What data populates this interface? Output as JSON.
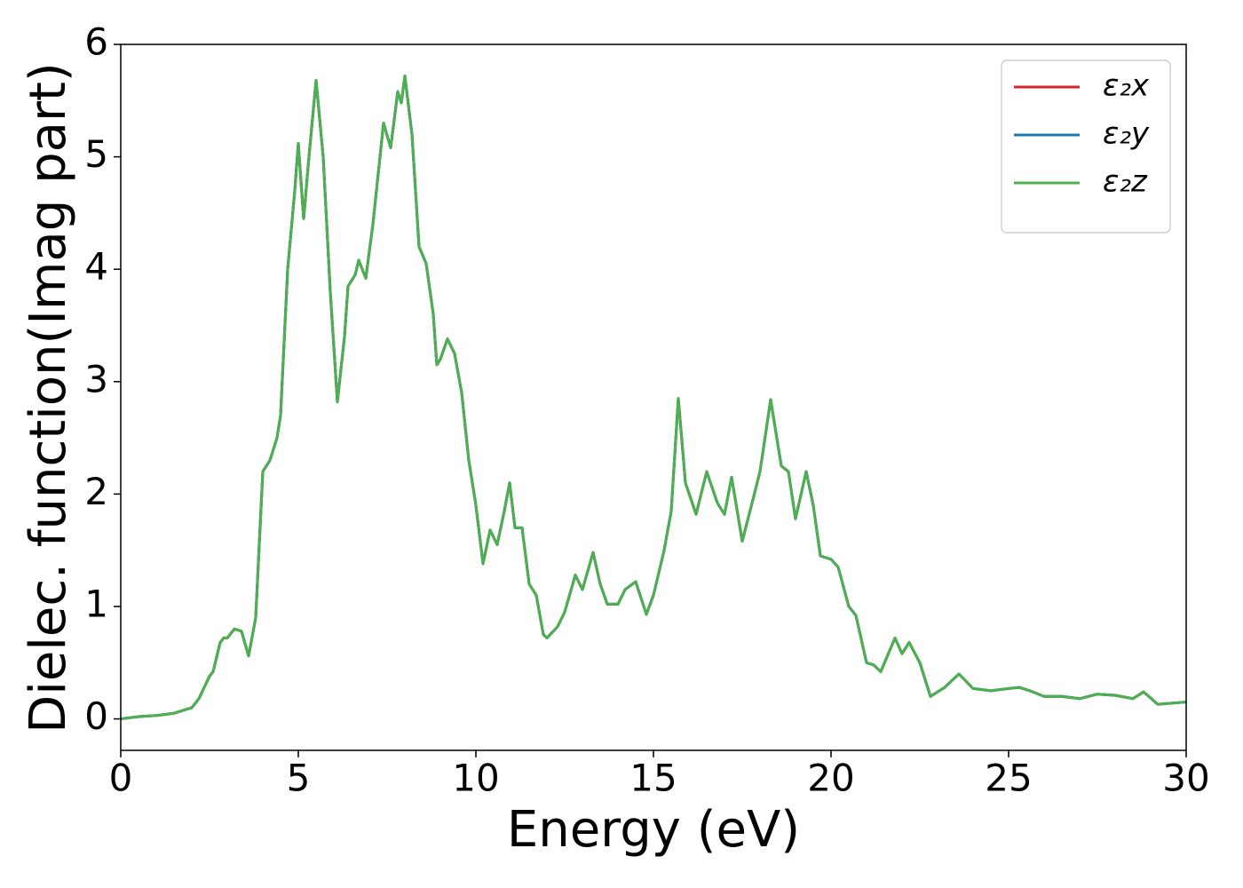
{
  "chart_data": {
    "type": "line",
    "xlabel": "Energy (eV)",
    "ylabel": "Dielec. function(Imag part)",
    "xlim": [
      0,
      30
    ],
    "xticks": [
      0,
      5,
      10,
      15,
      20,
      25,
      30
    ],
    "ylim": [
      -0.28,
      6
    ],
    "yticks": [
      0,
      1,
      2,
      3,
      4,
      5,
      6
    ],
    "legend": "upper right",
    "grid": false,
    "x": [
      0,
      0.5,
      1,
      1.5,
      2,
      2.2,
      2.5,
      2.6,
      2.8,
      2.9,
      3.0,
      3.2,
      3.4,
      3.6,
      3.8,
      4.0,
      4.1,
      4.2,
      4.4,
      4.5,
      4.7,
      4.9,
      5.0,
      5.15,
      5.3,
      5.5,
      5.7,
      5.9,
      6.1,
      6.3,
      6.4,
      6.6,
      6.7,
      6.9,
      7.1,
      7.4,
      7.6,
      7.8,
      7.9,
      8.0,
      8.2,
      8.4,
      8.6,
      8.8,
      8.9,
      9.0,
      9.2,
      9.4,
      9.6,
      9.8,
      10.0,
      10.2,
      10.4,
      10.6,
      10.8,
      10.95,
      11.1,
      11.3,
      11.5,
      11.7,
      11.9,
      12.0,
      12.3,
      12.5,
      12.8,
      13.0,
      13.3,
      13.5,
      13.7,
      14.0,
      14.2,
      14.5,
      14.8,
      15.0,
      15.3,
      15.5,
      15.7,
      15.9,
      16.2,
      16.5,
      16.8,
      17.0,
      17.2,
      17.5,
      17.8,
      18.0,
      18.3,
      18.6,
      18.8,
      19.0,
      19.3,
      19.5,
      19.7,
      20.0,
      20.2,
      20.5,
      20.7,
      21.0,
      21.2,
      21.4,
      21.8,
      22.0,
      22.2,
      22.5,
      22.8,
      23.2,
      23.6,
      24.0,
      24.5,
      25.0,
      25.3,
      25.6,
      26.0,
      26.5,
      27.0,
      27.5,
      28.0,
      28.5,
      28.8,
      29.2,
      30.0
    ],
    "series": [
      {
        "name": "ε₂x",
        "color": "#d62728",
        "values": [
          0.0,
          0.02,
          0.03,
          0.05,
          0.1,
          0.18,
          0.38,
          0.42,
          0.68,
          0.72,
          0.72,
          0.8,
          0.78,
          0.56,
          0.9,
          2.2,
          2.25,
          2.3,
          2.5,
          2.7,
          4.0,
          4.7,
          5.12,
          4.45,
          5.0,
          5.68,
          5.0,
          3.8,
          2.82,
          3.4,
          3.85,
          3.95,
          4.08,
          3.92,
          4.4,
          5.3,
          5.08,
          5.58,
          5.48,
          5.72,
          5.2,
          4.2,
          4.05,
          3.6,
          3.15,
          3.2,
          3.38,
          3.25,
          2.9,
          2.3,
          1.9,
          1.38,
          1.68,
          1.55,
          1.85,
          2.1,
          1.7,
          1.7,
          1.2,
          1.1,
          0.75,
          0.72,
          0.82,
          0.95,
          1.28,
          1.15,
          1.48,
          1.2,
          1.02,
          1.02,
          1.15,
          1.22,
          0.93,
          1.1,
          1.5,
          1.85,
          2.85,
          2.1,
          1.82,
          2.2,
          1.92,
          1.82,
          2.15,
          1.58,
          1.95,
          2.2,
          2.84,
          2.25,
          2.2,
          1.78,
          2.2,
          1.9,
          1.45,
          1.42,
          1.35,
          1.0,
          0.92,
          0.5,
          0.48,
          0.42,
          0.72,
          0.58,
          0.68,
          0.5,
          0.2,
          0.28,
          0.4,
          0.27,
          0.25,
          0.27,
          0.28,
          0.25,
          0.2,
          0.2,
          0.18,
          0.22,
          0.21,
          0.18,
          0.24,
          0.13,
          0.15
        ]
      },
      {
        "name": "ε₂y",
        "color": "#1f77b4",
        "values": [
          0.0,
          0.02,
          0.03,
          0.05,
          0.1,
          0.18,
          0.38,
          0.42,
          0.68,
          0.72,
          0.72,
          0.8,
          0.78,
          0.56,
          0.9,
          2.2,
          2.25,
          2.3,
          2.5,
          2.7,
          4.0,
          4.7,
          5.12,
          4.45,
          5.0,
          5.68,
          5.0,
          3.8,
          2.82,
          3.4,
          3.85,
          3.95,
          4.08,
          3.92,
          4.4,
          5.3,
          5.08,
          5.58,
          5.48,
          5.72,
          5.2,
          4.2,
          4.05,
          3.6,
          3.15,
          3.2,
          3.38,
          3.25,
          2.9,
          2.3,
          1.9,
          1.38,
          1.68,
          1.55,
          1.85,
          2.1,
          1.7,
          1.7,
          1.2,
          1.1,
          0.75,
          0.72,
          0.82,
          0.95,
          1.28,
          1.15,
          1.48,
          1.2,
          1.02,
          1.02,
          1.15,
          1.22,
          0.93,
          1.1,
          1.5,
          1.85,
          2.85,
          2.1,
          1.82,
          2.2,
          1.92,
          1.82,
          2.15,
          1.58,
          1.95,
          2.2,
          2.84,
          2.25,
          2.2,
          1.78,
          2.2,
          1.9,
          1.45,
          1.42,
          1.35,
          1.0,
          0.92,
          0.5,
          0.48,
          0.42,
          0.72,
          0.58,
          0.68,
          0.5,
          0.2,
          0.28,
          0.4,
          0.27,
          0.25,
          0.27,
          0.28,
          0.25,
          0.2,
          0.2,
          0.18,
          0.22,
          0.21,
          0.18,
          0.24,
          0.13,
          0.15
        ]
      },
      {
        "name": "ε₂z",
        "color": "#4caf50",
        "values": [
          0.0,
          0.02,
          0.03,
          0.05,
          0.1,
          0.18,
          0.38,
          0.42,
          0.68,
          0.72,
          0.72,
          0.8,
          0.78,
          0.56,
          0.9,
          2.2,
          2.25,
          2.3,
          2.5,
          2.7,
          4.0,
          4.7,
          5.12,
          4.45,
          5.0,
          5.68,
          5.0,
          3.8,
          2.82,
          3.4,
          3.85,
          3.95,
          4.08,
          3.92,
          4.4,
          5.3,
          5.08,
          5.58,
          5.48,
          5.72,
          5.2,
          4.2,
          4.05,
          3.6,
          3.15,
          3.2,
          3.38,
          3.25,
          2.9,
          2.3,
          1.9,
          1.38,
          1.68,
          1.55,
          1.85,
          2.1,
          1.7,
          1.7,
          1.2,
          1.1,
          0.75,
          0.72,
          0.82,
          0.95,
          1.28,
          1.15,
          1.48,
          1.2,
          1.02,
          1.02,
          1.15,
          1.22,
          0.93,
          1.1,
          1.5,
          1.85,
          2.85,
          2.1,
          1.82,
          2.2,
          1.92,
          1.82,
          2.15,
          1.58,
          1.95,
          2.2,
          2.84,
          2.25,
          2.2,
          1.78,
          2.2,
          1.9,
          1.45,
          1.42,
          1.35,
          1.0,
          0.92,
          0.5,
          0.48,
          0.42,
          0.72,
          0.58,
          0.68,
          0.5,
          0.2,
          0.28,
          0.4,
          0.27,
          0.25,
          0.27,
          0.28,
          0.25,
          0.2,
          0.2,
          0.18,
          0.22,
          0.21,
          0.18,
          0.24,
          0.13,
          0.15
        ]
      }
    ]
  }
}
